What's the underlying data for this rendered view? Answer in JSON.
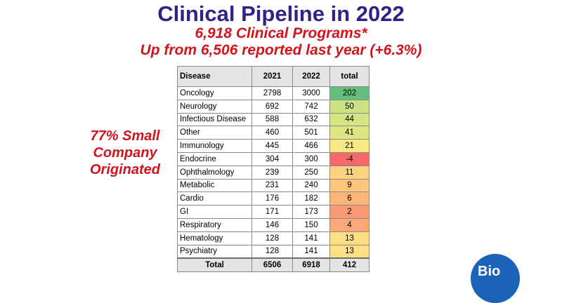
{
  "title": "Clinical Pipeline in 2022",
  "subtitle1": "6,918 Clinical Programs*",
  "subtitle2": "Up from 6,506 reported last year (+6.3%)",
  "side_note": [
    "77% Small",
    "Company",
    "Originated"
  ],
  "table": {
    "headers": [
      "Disease",
      "2021",
      "2022",
      "total"
    ],
    "rows": [
      {
        "disease": "Oncology",
        "y2021": "2798",
        "y2022": "3000",
        "total": "202",
        "color": "#63be7b"
      },
      {
        "disease": "Neurology",
        "y2021": "692",
        "y2022": "742",
        "total": "50",
        "color": "#cde283"
      },
      {
        "disease": "Infectious Disease",
        "y2021": "588",
        "y2022": "632",
        "total": "44",
        "color": "#d7e584"
      },
      {
        "disease": "Other",
        "y2021": "460",
        "y2022": "501",
        "total": "41",
        "color": "#dce683"
      },
      {
        "disease": "Immunology",
        "y2021": "445",
        "y2022": "466",
        "total": "21",
        "color": "#f8e985"
      },
      {
        "disease": "Endocrine",
        "y2021": "304",
        "y2022": "300",
        "total": "-4",
        "color": "#f8696b"
      },
      {
        "disease": "Ophthalmology",
        "y2021": "239",
        "y2022": "250",
        "total": "11",
        "color": "#fdd37f"
      },
      {
        "disease": "Metabolic",
        "y2021": "231",
        "y2022": "240",
        "total": "9",
        "color": "#fcc77c"
      },
      {
        "disease": "Cardio",
        "y2021": "176",
        "y2022": "182",
        "total": "6",
        "color": "#fbb579"
      },
      {
        "disease": "GI",
        "y2021": "171",
        "y2022": "173",
        "total": "2",
        "color": "#f99b75"
      },
      {
        "disease": "Respiratory",
        "y2021": "146",
        "y2022": "150",
        "total": "4",
        "color": "#faa877"
      },
      {
        "disease": "Hematology",
        "y2021": "128",
        "y2022": "141",
        "total": "13",
        "color": "#fee082"
      },
      {
        "disease": "Psychiatry",
        "y2021": "128",
        "y2022": "141",
        "total": "13",
        "color": "#fee082"
      }
    ],
    "total_row": {
      "label": "Total",
      "y2021": "6506",
      "y2022": "6918",
      "total": "412"
    }
  },
  "logo_text": "Bio",
  "colors": {
    "title": "#2e2487",
    "accent": "#d2141d",
    "logo": "#1a63b8"
  }
}
